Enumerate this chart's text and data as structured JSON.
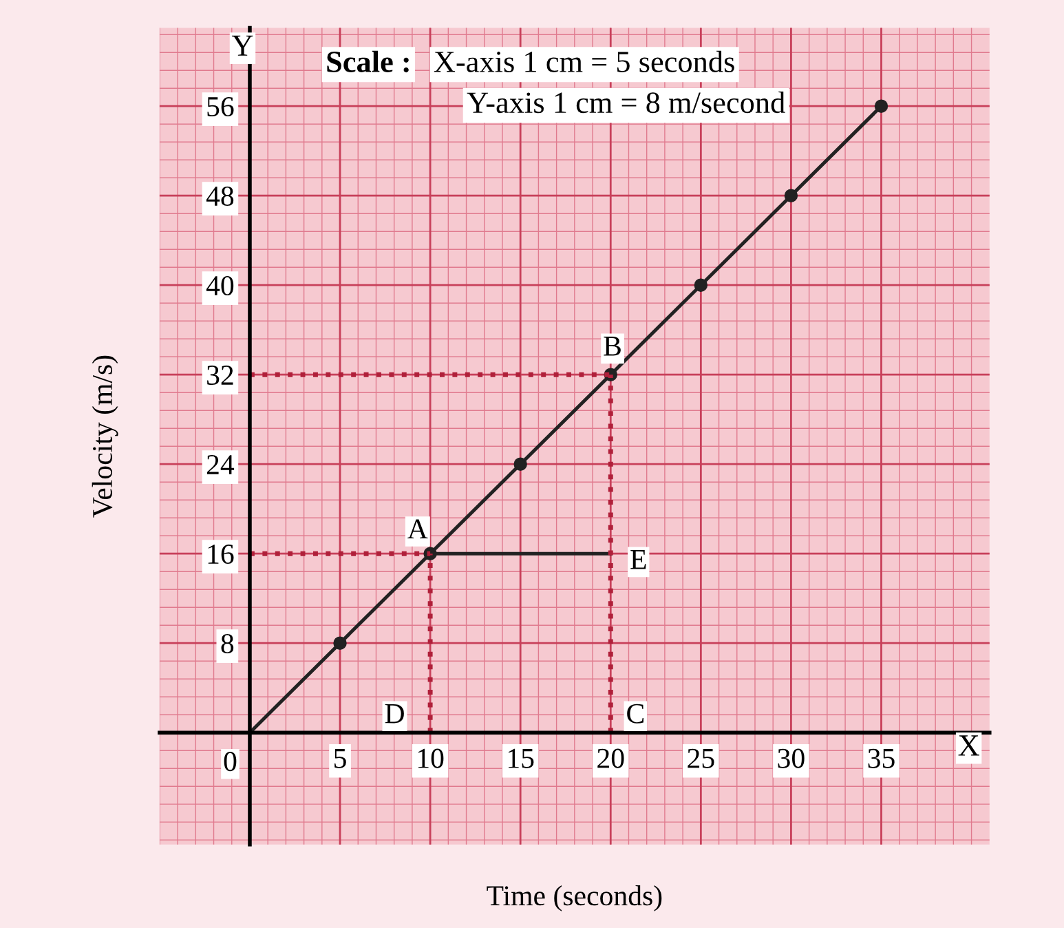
{
  "chart_data": {
    "type": "line",
    "xlabel": "Time (seconds)",
    "ylabel": "Velocity (m/s)",
    "xlim": [
      -5,
      41
    ],
    "ylim": [
      -10,
      63
    ],
    "xticks": [
      5,
      10,
      15,
      20,
      25,
      30,
      35
    ],
    "yticks": [
      8,
      16,
      24,
      32,
      40,
      48,
      56
    ],
    "grid": true,
    "marker": "circle",
    "series": [
      {
        "color": "#222222",
        "x": [
          0,
          5,
          10,
          15,
          20,
          25,
          30,
          35
        ],
        "values": [
          0,
          8,
          16,
          24,
          32,
          40,
          48,
          56
        ]
      },
      {
        "color": "#222222",
        "x": [
          10,
          20
        ],
        "values": [
          16,
          16
        ],
        "marker": "none",
        "line_style": "solid"
      },
      {
        "color": "#b0203a",
        "x": [
          0,
          10
        ],
        "values": [
          16,
          16
        ],
        "marker": "none",
        "line_style": "dotted"
      },
      {
        "color": "#b0203a",
        "x": [
          10,
          10
        ],
        "values": [
          0,
          16
        ],
        "marker": "none",
        "line_style": "dotted"
      },
      {
        "color": "#b0203a",
        "x": [
          0,
          20
        ],
        "values": [
          32,
          32
        ],
        "marker": "none",
        "line_style": "dotted"
      },
      {
        "color": "#b0203a",
        "x": [
          20,
          20
        ],
        "values": [
          0,
          32
        ],
        "marker": "none",
        "line_style": "dotted"
      }
    ],
    "annotations": [
      {
        "text": "A",
        "x": 10,
        "y": 16
      },
      {
        "text": "B",
        "x": 20,
        "y": 32
      },
      {
        "text": "C",
        "x": 20,
        "y": 0
      },
      {
        "text": "D",
        "x": 10,
        "y": 0
      },
      {
        "text": "E",
        "x": 20,
        "y": 16
      },
      {
        "text": "0",
        "x": 0,
        "y": 0
      },
      "X",
      "Y",
      "Scale :",
      "X-axis 1 cm = 5 seconds",
      "Y-axis 1 cm = 8 m/second"
    ]
  }
}
